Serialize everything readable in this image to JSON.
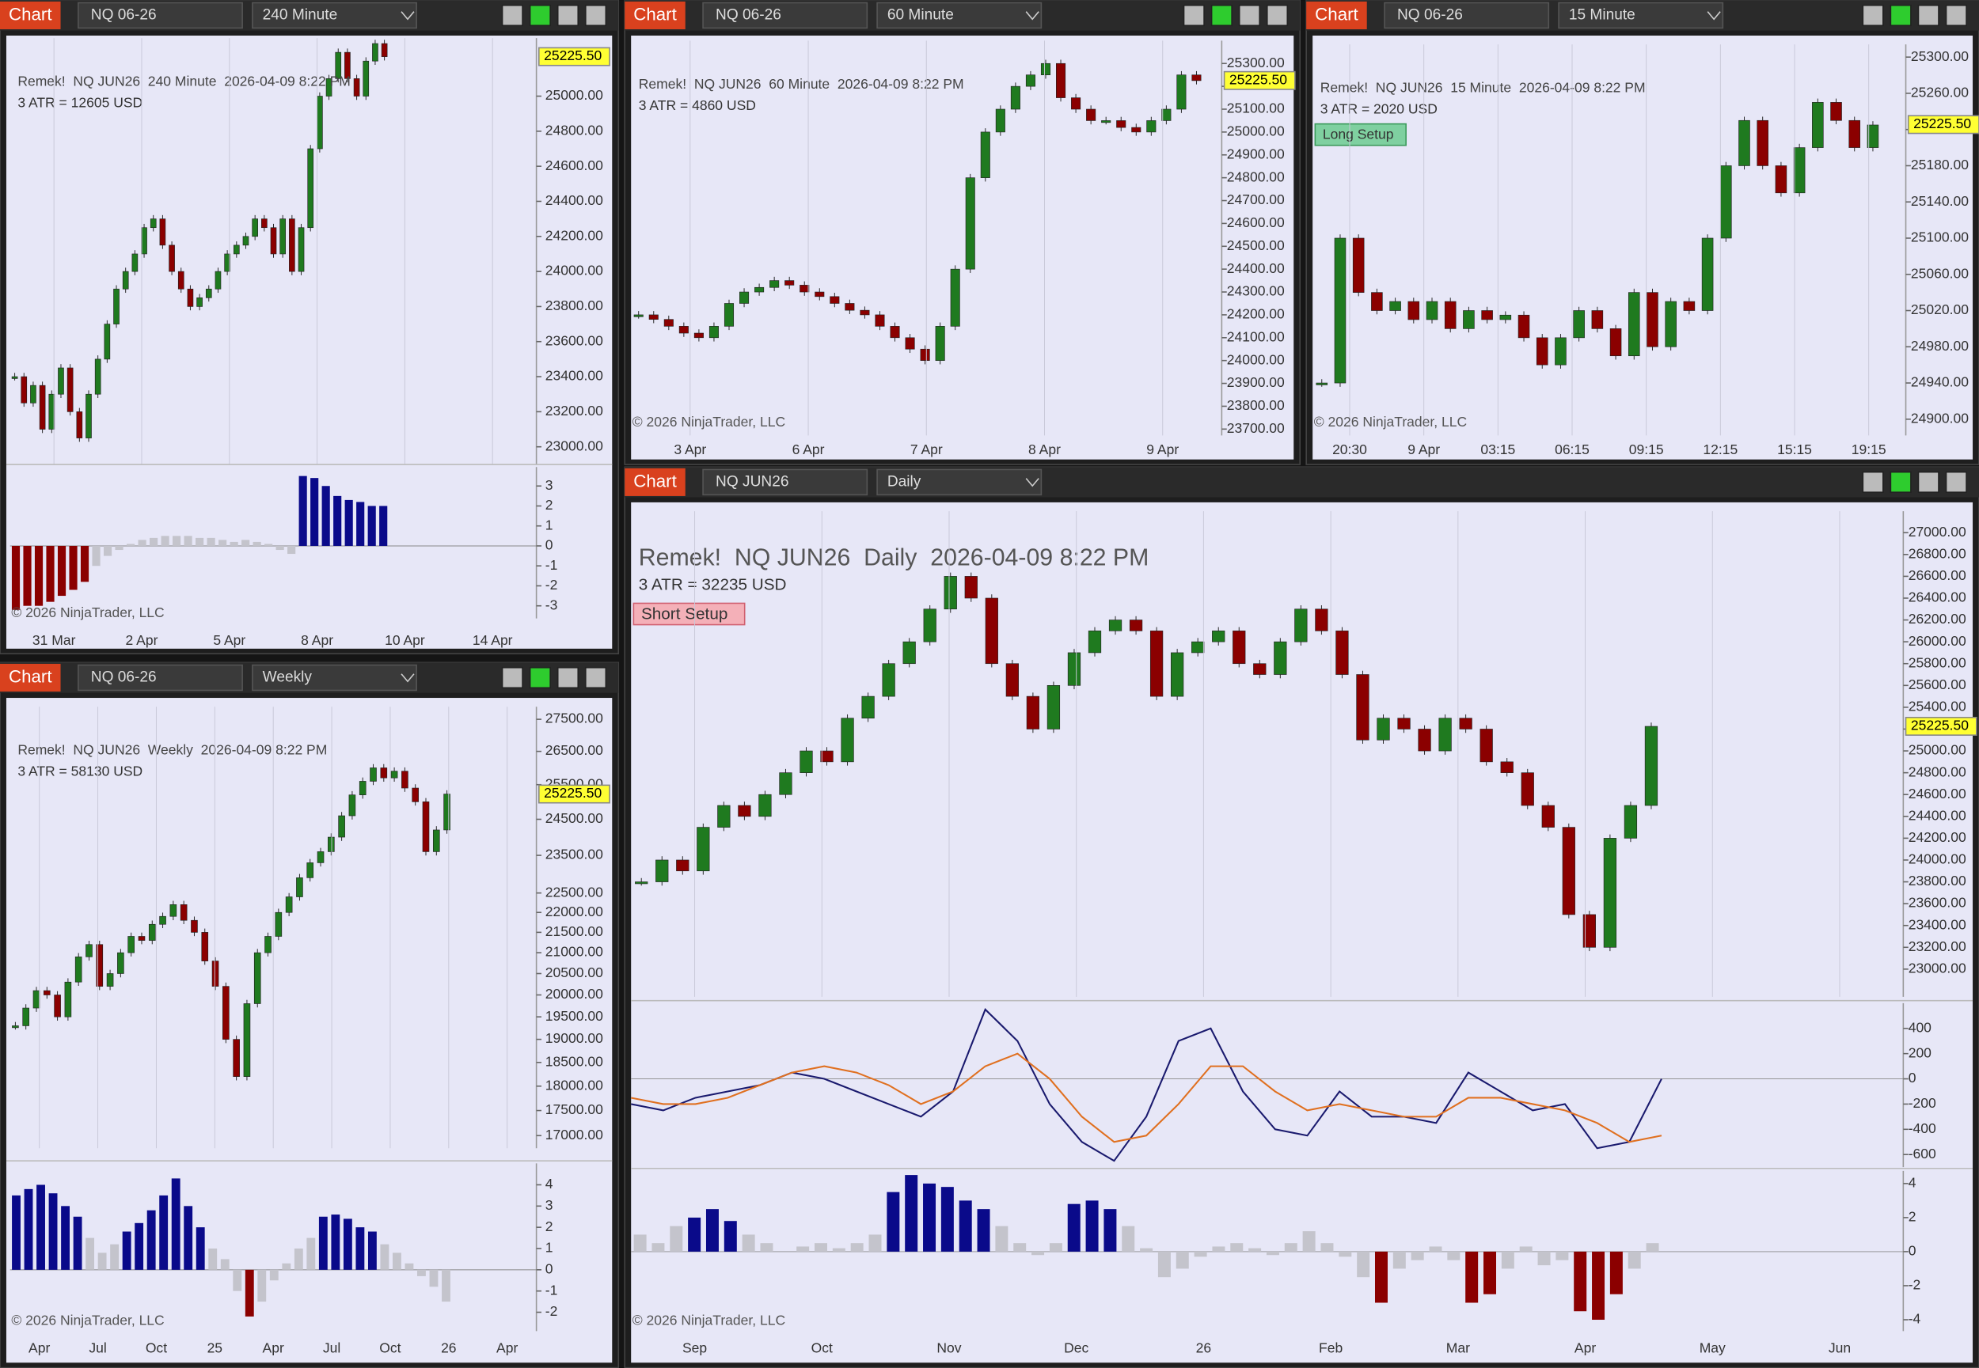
{
  "windows": [
    {
      "toolbar": {
        "app": "Chart",
        "instrument": "NQ 06-26",
        "interval": "240 Minute"
      },
      "header": "Remek!  NQ JUN26  240 Minute  2026-04-09 8:22 PM",
      "atr": "3 ATR = 12605 USD",
      "log_scale": false,
      "ylim": [
        22899,
        25331
      ],
      "yticks": [
        {
          "value": 23000,
          "label": "23000.00"
        },
        {
          "value": 23200,
          "label": "23200.00"
        },
        {
          "value": 23400,
          "label": "23400.00"
        },
        {
          "value": 23600,
          "label": "23600.00"
        },
        {
          "value": 23800,
          "label": "23800.00"
        },
        {
          "value": 24000,
          "label": "24000.00"
        },
        {
          "value": 24200,
          "label": "24200.00"
        },
        {
          "value": 24400,
          "label": "24400.00"
        },
        {
          "value": 24600,
          "label": "24600.00"
        },
        {
          "value": 24800,
          "label": "24800.00"
        },
        {
          "value": 25000,
          "label": "25000.00"
        }
      ],
      "last_price": {
        "value": 25225.5,
        "label": "25225.50"
      },
      "closes": [
        23400,
        23250,
        23350,
        23100,
        23300,
        23450,
        23200,
        23050,
        23300,
        23500,
        23700,
        23900,
        24000,
        24100,
        24250,
        24300,
        24150,
        24000,
        23900,
        23800,
        23850,
        23900,
        24000,
        24100,
        24150,
        24200,
        24300,
        24250,
        24100,
        24300,
        24000,
        24250,
        24700,
        25000,
        25100,
        25250,
        25100,
        25000,
        25200,
        25300,
        25225
      ],
      "time_labels": [
        "31 Mar",
        "2 Apr",
        "5 Apr",
        "8 Apr",
        "10 Apr",
        "14 Apr"
      ],
      "indicators": [
        {
          "ylim": [
            -3.63,
            3.95
          ],
          "yticks": [
            3,
            2,
            1,
            0,
            -1,
            -2,
            -3
          ],
          "histogram": [
            -3.2,
            -3,
            -3,
            -2.8,
            -2.5,
            -2.2,
            -1.8,
            -1,
            -0.5,
            -0.2,
            0.1,
            0.3,
            0.4,
            0.5,
            0.5,
            0.5,
            0.4,
            0.4,
            0.3,
            0.2,
            0.3,
            0.2,
            0.1,
            -0.2,
            -0.4,
            3.5,
            3.4,
            3,
            2.5,
            2.3,
            2.2,
            2,
            2
          ]
        }
      ],
      "copyright": "© 2026 NinjaTrader, LLC"
    },
    {
      "toolbar": {
        "app": "Chart",
        "instrument": "NQ 06-26",
        "interval": "60 Minute"
      },
      "header": "Remek!  NQ JUN26  60 Minute  2026-04-09 8:22 PM",
      "atr": "3 ATR = 4860 USD",
      "log_scale": false,
      "ylim": [
        23672,
        25400
      ],
      "yticks": [
        {
          "value": 23700,
          "label": "23700.00"
        },
        {
          "value": 23800,
          "label": "23800.00"
        },
        {
          "value": 23900,
          "label": "23900.00"
        },
        {
          "value": 24000,
          "label": "24000.00"
        },
        {
          "value": 24100,
          "label": "24100.00"
        },
        {
          "value": 24200,
          "label": "24200.00"
        },
        {
          "value": 24300,
          "label": "24300.00"
        },
        {
          "value": 24400,
          "label": "24400.00"
        },
        {
          "value": 24500,
          "label": "24500.00"
        },
        {
          "value": 24600,
          "label": "24600.00"
        },
        {
          "value": 24700,
          "label": "24700.00"
        },
        {
          "value": 24800,
          "label": "24800.00"
        },
        {
          "value": 24900,
          "label": "24900.00"
        },
        {
          "value": 25000,
          "label": "25000.00"
        },
        {
          "value": 25100,
          "label": "25100.00"
        },
        {
          "value": 25200,
          "label": "25200.00"
        },
        {
          "value": 25300,
          "label": "25300.00"
        }
      ],
      "last_price": {
        "value": 25225.5,
        "label": "25225.50"
      },
      "closes": [
        24200,
        24180,
        24150,
        24120,
        24100,
        24150,
        24250,
        24300,
        24320,
        24350,
        24330,
        24300,
        24280,
        24250,
        24220,
        24200,
        24150,
        24100,
        24050,
        24000,
        24150,
        24400,
        24800,
        25000,
        25100,
        25200,
        25250,
        25300,
        25150,
        25100,
        25050,
        25050,
        25020,
        25000,
        25050,
        25100,
        25250,
        25225
      ],
      "time_labels": [
        "3 Apr",
        "6 Apr",
        "7 Apr",
        "8 Apr",
        "9 Apr"
      ],
      "indicators": [],
      "copyright": "© 2026 NinjaTrader, LLC"
    },
    {
      "toolbar": {
        "app": "Chart",
        "instrument": "NQ 06-26",
        "interval": "15 Minute"
      },
      "header": "Remek!  NQ JUN26  15 Minute  2026-04-09 8:22 PM",
      "atr": "3 ATR = 2020 USD",
      "setup": "Long Setup",
      "log_scale": false,
      "ylim": [
        24882,
        25314
      ],
      "yticks": [
        {
          "value": 24900,
          "label": "24900.00"
        },
        {
          "value": 24940,
          "label": "24940.00"
        },
        {
          "value": 24980,
          "label": "24980.00"
        },
        {
          "value": 25020,
          "label": "25020.00"
        },
        {
          "value": 25060,
          "label": "25060.00"
        },
        {
          "value": 25100,
          "label": "25100.00"
        },
        {
          "value": 25140,
          "label": "25140.00"
        },
        {
          "value": 25180,
          "label": "25180.00"
        },
        {
          "value": 25220,
          "label": "25220.00"
        },
        {
          "value": 25260,
          "label": "25260.00"
        },
        {
          "value": 25300,
          "label": "25300.00"
        }
      ],
      "last_price": {
        "value": 25225.5,
        "label": "25225.50"
      },
      "closes": [
        24940,
        25100,
        25040,
        25020,
        25030,
        25010,
        25030,
        25000,
        25020,
        25010,
        25015,
        24990,
        24960,
        24990,
        25020,
        25000,
        24970,
        25040,
        24980,
        25030,
        25020,
        25100,
        25180,
        25230,
        25180,
        25150,
        25200,
        25250,
        25230,
        25200,
        25225
      ],
      "time_labels": [
        "20:30",
        "9 Apr",
        "03:15",
        "06:15",
        "09:15",
        "12:15",
        "15:15",
        "19:15"
      ],
      "indicators": [],
      "copyright": "© 2026 NinjaTrader, LLC"
    },
    {
      "toolbar": {
        "app": "Chart",
        "instrument": "NQ 06-26",
        "interval": "Weekly"
      },
      "header": "Remek!  NQ JUN26  Weekly  2026-04-09 8:22 PM",
      "atr": "3 ATR = 58130 USD",
      "log_scale": true,
      "ylim": [
        16754,
        27903
      ],
      "yticks": [
        {
          "value": 17000,
          "label": "17000.00"
        },
        {
          "value": 17500,
          "label": "17500.00"
        },
        {
          "value": 18000,
          "label": "18000.00"
        },
        {
          "value": 18500,
          "label": "18500.00"
        },
        {
          "value": 19000,
          "label": "19000.00"
        },
        {
          "value": 19500,
          "label": "19500.00"
        },
        {
          "value": 20000,
          "label": "20000.00"
        },
        {
          "value": 20500,
          "label": "20500.00"
        },
        {
          "value": 21000,
          "label": "21000.00"
        },
        {
          "value": 21500,
          "label": "21500.00"
        },
        {
          "value": 22000,
          "label": "22000.00"
        },
        {
          "value": 22500,
          "label": "22500.00"
        },
        {
          "value": 23500,
          "label": "23500.00"
        },
        {
          "value": 24500,
          "label": "24500.00"
        },
        {
          "value": 25500,
          "label": "25500.00"
        },
        {
          "value": 26500,
          "label": "26500.00"
        },
        {
          "value": 27500,
          "label": "27500.00"
        }
      ],
      "last_price": {
        "value": 25225.5,
        "label": "25225.50"
      },
      "closes": [
        19300,
        19700,
        20100,
        20000,
        19500,
        20300,
        20900,
        21200,
        20200,
        20500,
        21000,
        21400,
        21300,
        21700,
        21900,
        22200,
        21800,
        21500,
        20800,
        20200,
        19000,
        18200,
        19800,
        21000,
        21400,
        22000,
        22400,
        22900,
        23300,
        23600,
        24000,
        24600,
        25200,
        25600,
        26000,
        25700,
        25900,
        25400,
        25000,
        23600,
        24200,
        25225
      ],
      "time_labels": [
        "Apr",
        "Jul",
        "Oct",
        "25",
        "Apr",
        "Jul",
        "Oct",
        "26",
        "Apr"
      ],
      "indicators": [
        {
          "ylim": [
            -2.89,
            5.01
          ],
          "yticks": [
            4,
            3,
            2,
            1,
            0,
            -1,
            -2
          ],
          "histogram": [
            3.5,
            3.8,
            4,
            3.6,
            3,
            2.5,
            1.5,
            0.8,
            1.2,
            1.8,
            2.2,
            2.8,
            3.5,
            4.3,
            3,
            2,
            1,
            0.5,
            -1,
            -2.2,
            -1.5,
            -0.5,
            0.3,
            1,
            1.5,
            2.5,
            2.6,
            2.4,
            2,
            1.8,
            1.2,
            0.8,
            0.3,
            -0.3,
            -0.8,
            -1.5
          ]
        }
      ],
      "copyright": "© 2026 NinjaTrader, LLC"
    },
    {
      "toolbar": {
        "app": "Chart",
        "instrument": "NQ JUN26",
        "interval": "Daily"
      },
      "header": "Remek!  NQ JUN26  Daily  2026-04-09 8:22 PM",
      "atr": "3 ATR = 32235 USD",
      "setup": "Short Setup",
      "log_scale": false,
      "ylim": [
        22746,
        27197
      ],
      "yticks": [
        {
          "value": 23000,
          "label": "23000.00"
        },
        {
          "value": 23200,
          "label": "23200.00"
        },
        {
          "value": 23400,
          "label": "23400.00"
        },
        {
          "value": 23600,
          "label": "23600.00"
        },
        {
          "value": 23800,
          "label": "23800.00"
        },
        {
          "value": 24000,
          "label": "24000.00"
        },
        {
          "value": 24200,
          "label": "24200.00"
        },
        {
          "value": 24400,
          "label": "24400.00"
        },
        {
          "value": 24600,
          "label": "24600.00"
        },
        {
          "value": 24800,
          "label": "24800.00"
        },
        {
          "value": 25000,
          "label": "25000.00"
        },
        {
          "value": 25200,
          "label": "25200.00"
        },
        {
          "value": 25400,
          "label": "25400.00"
        },
        {
          "value": 25600,
          "label": "25600.00"
        },
        {
          "value": 25800,
          "label": "25800.00"
        },
        {
          "value": 26000,
          "label": "26000.00"
        },
        {
          "value": 26200,
          "label": "26200.00"
        },
        {
          "value": 26400,
          "label": "26400.00"
        },
        {
          "value": 26600,
          "label": "26600.00"
        },
        {
          "value": 26800,
          "label": "26800.00"
        },
        {
          "value": 27000,
          "label": "27000.00"
        }
      ],
      "last_price": {
        "value": 25225.5,
        "label": "25225.50"
      },
      "closes": [
        23800,
        24000,
        23900,
        24300,
        24500,
        24400,
        24600,
        24800,
        25000,
        24900,
        25300,
        25500,
        25800,
        26000,
        26300,
        26600,
        26400,
        25800,
        25500,
        25200,
        25600,
        25900,
        26100,
        26200,
        26100,
        25500,
        25900,
        26000,
        26100,
        25800,
        25700,
        26000,
        26300,
        26100,
        25700,
        25100,
        25300,
        25200,
        25000,
        25300,
        25200,
        24900,
        24800,
        24500,
        24300,
        23500,
        23200,
        24200,
        24500,
        25225
      ],
      "time_labels": [
        "Sep",
        "Oct",
        "Nov",
        "Dec",
        "26",
        "Feb",
        "Mar",
        "Apr",
        "May",
        "Jun"
      ],
      "indicators": [
        {
          "ylim": [
            -700,
            600
          ],
          "yticks": [
            400,
            200,
            0,
            -200,
            -400,
            -600
          ],
          "lines": [
            {
              "color": "#1a1a6e",
              "values": [
                -200,
                -250,
                -150,
                -100,
                -50,
                50,
                0,
                -100,
                -200,
                -300,
                -100,
                550,
                300,
                -200,
                -500,
                -650,
                -300,
                300,
                400,
                -100,
                -400,
                -450,
                -100,
                -300,
                -300,
                -350,
                50,
                -100,
                -250,
                -200,
                -550,
                -500,
                0
              ]
            },
            {
              "color": "#e07020",
              "values": [
                -150,
                -200,
                -200,
                -150,
                -50,
                50,
                100,
                50,
                -50,
                -200,
                -100,
                100,
                200,
                0,
                -300,
                -500,
                -450,
                -200,
                100,
                100,
                -100,
                -250,
                -200,
                -250,
                -300,
                -300,
                -150,
                -150,
                -200,
                -250,
                -350,
                -500,
                -450
              ]
            }
          ]
        },
        {
          "ylim": [
            -4.67,
            4.74
          ],
          "yticks": [
            4,
            2,
            0,
            -2,
            -4
          ],
          "histogram": [
            1,
            0.5,
            1.5,
            2,
            2.5,
            1.8,
            1,
            0.5,
            0,
            0.3,
            0.5,
            0.2,
            0.5,
            1,
            3.5,
            4.5,
            4,
            3.8,
            3,
            2.5,
            1.5,
            0.5,
            -0.2,
            0.5,
            2.8,
            3,
            2.5,
            1.5,
            0.2,
            -1.5,
            -1,
            -0.3,
            0.3,
            0.5,
            0.2,
            -0.2,
            0.5,
            1.2,
            0.5,
            -0.3,
            -1.5,
            -3,
            -1,
            -0.5,
            0.3,
            -0.5,
            -3,
            -2.5,
            -1,
            0.3,
            -0.8,
            -0.5,
            -3.5,
            -4,
            -2.5,
            -1,
            0.5
          ]
        }
      ],
      "copyright": "© 2026 NinjaTrader, LLC"
    }
  ]
}
